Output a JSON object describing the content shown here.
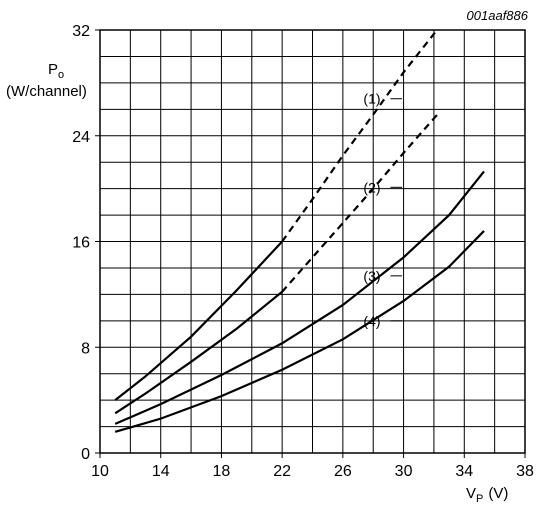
{
  "chart_data": {
    "type": "line",
    "reference_code": "001aaf886",
    "ylabel": {
      "main": "P",
      "sub": "o",
      "unit": "(W/channel)"
    },
    "xlabel": {
      "main": "V",
      "sub": "P",
      "unit": "(V)"
    },
    "xlim": [
      10,
      38
    ],
    "ylim": [
      0,
      32
    ],
    "x_ticks": [
      10,
      14,
      18,
      22,
      26,
      30,
      34,
      38
    ],
    "y_ticks": [
      0,
      8,
      16,
      24,
      32
    ],
    "grid": true,
    "series": [
      {
        "name": "(1)",
        "solid": [
          [
            11,
            4.0
          ],
          [
            13,
            5.8
          ],
          [
            16,
            8.8
          ],
          [
            19,
            12.3
          ],
          [
            22,
            16.0
          ]
        ],
        "dashed": [
          [
            22,
            16.0
          ],
          [
            24,
            19.2
          ],
          [
            26,
            22.5
          ],
          [
            28,
            25.6
          ],
          [
            30,
            28.8
          ],
          [
            32.2,
            32.0
          ]
        ]
      },
      {
        "name": "(2)",
        "solid": [
          [
            11,
            3.0
          ],
          [
            13,
            4.5
          ],
          [
            16,
            6.9
          ],
          [
            19,
            9.4
          ],
          [
            22,
            12.2
          ]
        ],
        "dashed": [
          [
            22,
            12.2
          ],
          [
            24,
            14.8
          ],
          [
            26,
            17.4
          ],
          [
            28,
            20.0
          ],
          [
            30,
            22.7
          ],
          [
            32.3,
            25.7
          ]
        ]
      },
      {
        "name": "(3)",
        "solid": [
          [
            11,
            2.2
          ],
          [
            14,
            3.7
          ],
          [
            18,
            5.9
          ],
          [
            22,
            8.3
          ],
          [
            26,
            11.2
          ],
          [
            30,
            14.8
          ],
          [
            33,
            18.0
          ],
          [
            35.3,
            21.3
          ]
        ]
      },
      {
        "name": "(4)",
        "solid": [
          [
            11,
            1.6
          ],
          [
            14,
            2.6
          ],
          [
            18,
            4.3
          ],
          [
            22,
            6.3
          ],
          [
            26,
            8.6
          ],
          [
            30,
            11.5
          ],
          [
            33,
            14.1
          ],
          [
            35.3,
            16.8
          ]
        ]
      }
    ]
  }
}
